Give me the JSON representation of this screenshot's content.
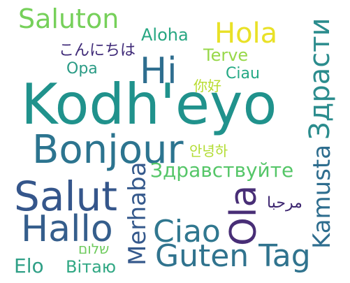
{
  "words": [
    {
      "text": "Saluton",
      "color": "#76d05a"
    },
    {
      "text": "Aloha",
      "color": "#27a782"
    },
    {
      "text": "Hola",
      "color": "#e9e127"
    },
    {
      "text": "Здрасти",
      "color": "#2b8c8d"
    },
    {
      "text": "こんにちは",
      "color": "#3f2a78"
    },
    {
      "text": "Terve",
      "color": "#98d84a"
    },
    {
      "text": "Hi",
      "color": "#2f6e8f"
    },
    {
      "text": "Opa",
      "color": "#2a9b85"
    },
    {
      "text": "Ciau",
      "color": "#25a985"
    },
    {
      "text": "你好",
      "color": "#b8dc2d"
    },
    {
      "text": "Kodh'eyo",
      "color": "#20928c"
    },
    {
      "text": "Bonjour",
      "color": "#2c748f"
    },
    {
      "text": "안녕하",
      "color": "#b2dc33"
    },
    {
      "text": "Kamusta",
      "color": "#2e6d8e"
    },
    {
      "text": "Здравствуйте",
      "color": "#55c668"
    },
    {
      "text": "Merhaba",
      "color": "#35598c"
    },
    {
      "text": "Salut",
      "color": "#35568b"
    },
    {
      "text": "Hallo",
      "color": "#355e8c"
    },
    {
      "text": "Ola",
      "color": "#482e76"
    },
    {
      "text": "مرحبا",
      "color": "#3d2670"
    },
    {
      "text": "Ciao",
      "color": "#30778f"
    },
    {
      "text": "Guten Tag",
      "color": "#30738e"
    },
    {
      "text": "שלום",
      "color": "#6fcb5e"
    },
    {
      "text": "Elo",
      "color": "#2f9f86"
    },
    {
      "text": "Вітаю",
      "color": "#31a884"
    }
  ]
}
